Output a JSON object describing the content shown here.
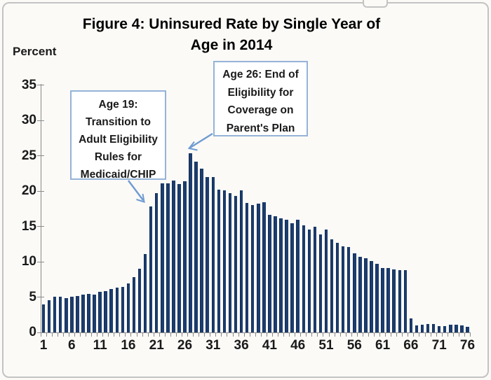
{
  "title": {
    "line1": "Figure 4: Uninsured Rate by Single Year of",
    "line2": "Age in 2014"
  },
  "y_axis": {
    "label": "Percent",
    "tick_values": [
      0,
      5,
      10,
      15,
      20,
      25,
      30,
      35
    ]
  },
  "x_axis": {
    "tick_ages": [
      1,
      6,
      11,
      16,
      21,
      26,
      31,
      36,
      41,
      46,
      51,
      56,
      61,
      66,
      71,
      76
    ]
  },
  "annotations": [
    {
      "id": "age19",
      "lines": [
        "Age 19:",
        "Transition to",
        "Adult Eligibility",
        "Rules for",
        "Medicaid/CHIP"
      ]
    },
    {
      "id": "age26",
      "lines": [
        "Age 26: End of",
        "Eligibility for",
        "Coverage on",
        "Parent's Plan"
      ]
    }
  ],
  "colors": {
    "bar": "#1b3c6e",
    "bar_edge": "#122c52",
    "axis": "#8a8a8a",
    "annotation_border": "#95b3d7",
    "arrow": "#6f9bd2",
    "text": "#1a1a1a",
    "background": "#fbfaf7"
  },
  "chart_data": {
    "type": "bar",
    "title": "Figure 4: Uninsured Rate by Single Year of Age in 2014",
    "xlabel": "",
    "ylabel": "Percent",
    "ylim": [
      0,
      35
    ],
    "x_tick_labels": [
      "1",
      "6",
      "11",
      "16",
      "21",
      "26",
      "31",
      "36",
      "41",
      "46",
      "51",
      "56",
      "61",
      "66",
      "71",
      "76"
    ],
    "legend": "none",
    "grid": false,
    "ages": [
      1,
      2,
      3,
      4,
      5,
      6,
      7,
      8,
      9,
      10,
      11,
      12,
      13,
      14,
      15,
      16,
      17,
      18,
      19,
      20,
      21,
      22,
      23,
      24,
      25,
      26,
      27,
      28,
      29,
      30,
      31,
      32,
      33,
      34,
      35,
      36,
      37,
      38,
      39,
      40,
      41,
      42,
      43,
      44,
      45,
      46,
      47,
      48,
      49,
      50,
      51,
      52,
      53,
      54,
      55,
      56,
      57,
      58,
      59,
      60,
      61,
      62,
      63,
      64,
      65,
      66,
      67,
      68,
      69,
      70,
      71,
      72,
      73,
      74,
      75,
      76
    ],
    "values": [
      4.0,
      4.6,
      5.1,
      5.1,
      4.9,
      5.1,
      5.2,
      5.4,
      5.5,
      5.4,
      5.7,
      5.8,
      6.1,
      6.3,
      6.4,
      6.9,
      7.8,
      9.0,
      11.1,
      17.8,
      19.7,
      21.1,
      21.1,
      21.5,
      21.0,
      21.4,
      25.4,
      24.2,
      23.2,
      22.0,
      22.0,
      20.2,
      20.1,
      19.7,
      19.3,
      20.1,
      18.3,
      18.0,
      18.2,
      18.4,
      16.7,
      16.5,
      16.2,
      16.0,
      15.5,
      16.0,
      15.2,
      14.6,
      15.0,
      13.9,
      14.6,
      13.2,
      12.7,
      12.2,
      12.1,
      11.2,
      10.7,
      10.5,
      10.1,
      9.7,
      9.1,
      9.1,
      8.9,
      8.8,
      8.8,
      2.0,
      1.0,
      1.1,
      1.2,
      1.2,
      0.9,
      0.9,
      1.1,
      1.1,
      1.0,
      0.8
    ],
    "annotations": [
      {
        "target_age": 19,
        "text": "Age 19: Transition to Adult Eligibility Rules for Medicaid/CHIP"
      },
      {
        "target_age": 26,
        "text": "Age 26: End of Eligibility for Coverage on Parent's Plan"
      }
    ]
  }
}
